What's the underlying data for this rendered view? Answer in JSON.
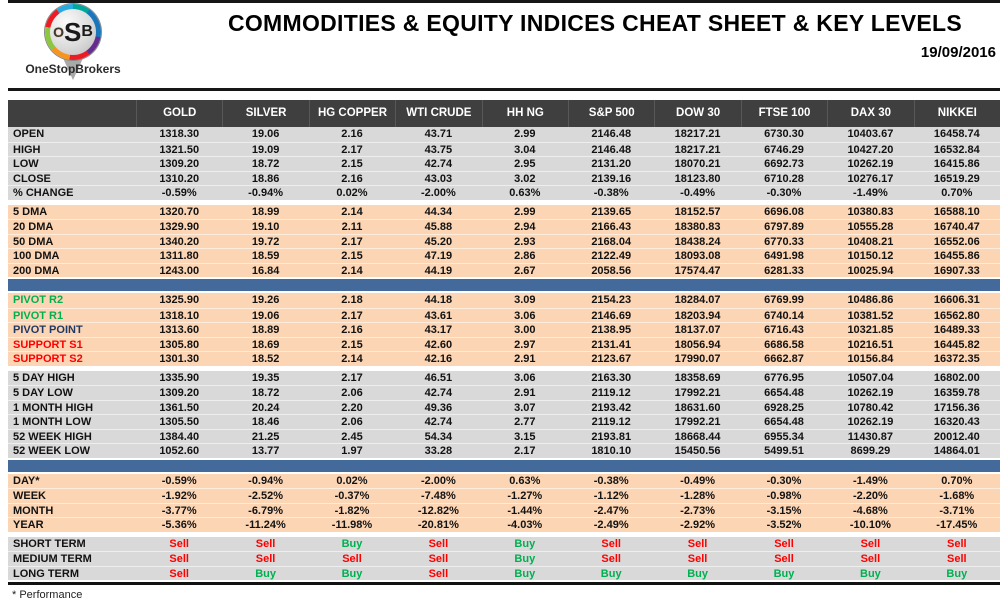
{
  "header": {
    "title": "COMMODITIES & EQUITY INDICES CHEAT SHEET & KEY LEVELS",
    "date": "19/09/2016",
    "logo": {
      "letters": [
        "O",
        "S",
        "B"
      ],
      "name": "OneStopBrokers"
    }
  },
  "colors": {
    "header_dark": "#3f3f3f",
    "gray_row": "#d9d9d9",
    "peach_row": "#fcd5b4",
    "band_blue": "#44699b",
    "buy_green": "#00b050",
    "sell_red": "#fe0000",
    "pivot_navy": "#1f3864"
  },
  "table": {
    "columns": [
      "GOLD",
      "SILVER",
      "HG COPPER",
      "WTI CRUDE",
      "HH NG",
      "S&P 500",
      "DOW 30",
      "FTSE 100",
      "DAX 30",
      "NIKKEI"
    ],
    "sections": [
      {
        "id": "daily",
        "bg": "gray",
        "divider_after": "gap",
        "rows": [
          {
            "label": "OPEN",
            "values": [
              "1318.30",
              "19.06",
              "2.16",
              "43.71",
              "2.99",
              "2146.48",
              "18217.21",
              "6730.30",
              "10403.67",
              "16458.74"
            ]
          },
          {
            "label": "HIGH",
            "values": [
              "1321.50",
              "19.09",
              "2.17",
              "43.75",
              "3.04",
              "2146.48",
              "18217.21",
              "6746.29",
              "10427.20",
              "16532.84"
            ]
          },
          {
            "label": "LOW",
            "values": [
              "1309.20",
              "18.72",
              "2.15",
              "42.74",
              "2.95",
              "2131.20",
              "18070.21",
              "6692.73",
              "10262.19",
              "16415.86"
            ]
          },
          {
            "label": "CLOSE",
            "values": [
              "1310.20",
              "18.86",
              "2.16",
              "43.03",
              "3.02",
              "2139.16",
              "18123.80",
              "6710.28",
              "10276.17",
              "16519.29"
            ]
          },
          {
            "label": "% CHANGE",
            "values": [
              "-0.59%",
              "-0.94%",
              "0.02%",
              "-2.00%",
              "0.63%",
              "-0.38%",
              "-0.49%",
              "-0.30%",
              "-1.49%",
              "0.70%"
            ]
          }
        ]
      },
      {
        "id": "dma",
        "bg": "peach",
        "divider_after": "band",
        "rows": [
          {
            "label": "5 DMA",
            "values": [
              "1320.70",
              "18.99",
              "2.14",
              "44.34",
              "2.99",
              "2139.65",
              "18152.57",
              "6696.08",
              "10380.83",
              "16588.10"
            ]
          },
          {
            "label": "20 DMA",
            "values": [
              "1329.90",
              "19.10",
              "2.11",
              "45.88",
              "2.94",
              "2166.43",
              "18380.83",
              "6797.89",
              "10555.28",
              "16740.47"
            ]
          },
          {
            "label": "50 DMA",
            "values": [
              "1340.20",
              "19.72",
              "2.17",
              "45.20",
              "2.93",
              "2168.04",
              "18438.24",
              "6770.33",
              "10408.21",
              "16552.06"
            ]
          },
          {
            "label": "100 DMA",
            "values": [
              "1311.80",
              "18.59",
              "2.15",
              "47.19",
              "2.86",
              "2122.49",
              "18093.08",
              "6491.98",
              "10150.12",
              "16455.86"
            ]
          },
          {
            "label": "200 DMA",
            "values": [
              "1243.00",
              "16.84",
              "2.14",
              "44.19",
              "2.67",
              "2058.56",
              "17574.47",
              "6281.33",
              "10025.94",
              "16907.33"
            ]
          }
        ]
      },
      {
        "id": "pivots",
        "bg": "peach",
        "divider_after": "gap",
        "rows": [
          {
            "label": "PIVOT R2",
            "label_color": "green",
            "values": [
              "1325.90",
              "19.26",
              "2.18",
              "44.18",
              "3.09",
              "2154.23",
              "18284.07",
              "6769.99",
              "10486.86",
              "16606.31"
            ]
          },
          {
            "label": "PIVOT R1",
            "label_color": "green",
            "values": [
              "1318.10",
              "19.06",
              "2.17",
              "43.61",
              "3.06",
              "2146.69",
              "18203.94",
              "6740.14",
              "10381.52",
              "16562.80"
            ]
          },
          {
            "label": "PIVOT POINT",
            "label_color": "navy",
            "values": [
              "1313.60",
              "18.89",
              "2.16",
              "43.17",
              "3.00",
              "2138.95",
              "18137.07",
              "6716.43",
              "10321.85",
              "16489.33"
            ]
          },
          {
            "label": "SUPPORT S1",
            "label_color": "red",
            "values": [
              "1305.80",
              "18.69",
              "2.15",
              "42.60",
              "2.97",
              "2131.41",
              "18056.94",
              "6686.58",
              "10216.51",
              "16445.82"
            ]
          },
          {
            "label": "SUPPORT S2",
            "label_color": "red",
            "values": [
              "1301.30",
              "18.52",
              "2.14",
              "42.16",
              "2.91",
              "2123.67",
              "17990.07",
              "6662.87",
              "10156.84",
              "16372.35"
            ]
          }
        ]
      },
      {
        "id": "ranges",
        "bg": "gray",
        "divider_after": "band",
        "rows": [
          {
            "label": "5 DAY HIGH",
            "values": [
              "1335.90",
              "19.35",
              "2.17",
              "46.51",
              "3.06",
              "2163.30",
              "18358.69",
              "6776.95",
              "10507.04",
              "16802.00"
            ]
          },
          {
            "label": "5 DAY LOW",
            "values": [
              "1309.20",
              "18.72",
              "2.06",
              "42.74",
              "2.91",
              "2119.12",
              "17992.21",
              "6654.48",
              "10262.19",
              "16359.78"
            ]
          },
          {
            "label": "1 MONTH HIGH",
            "values": [
              "1361.50",
              "20.24",
              "2.20",
              "49.36",
              "3.07",
              "2193.42",
              "18631.60",
              "6928.25",
              "10780.42",
              "17156.36"
            ]
          },
          {
            "label": "1 MONTH LOW",
            "values": [
              "1305.50",
              "18.46",
              "2.06",
              "42.74",
              "2.77",
              "2119.12",
              "17992.21",
              "6654.48",
              "10262.19",
              "16320.43"
            ]
          },
          {
            "label": "52 WEEK HIGH",
            "values": [
              "1384.40",
              "21.25",
              "2.45",
              "54.34",
              "3.15",
              "2193.81",
              "18668.44",
              "6955.34",
              "11430.87",
              "20012.40"
            ]
          },
          {
            "label": "52 WEEK LOW",
            "values": [
              "1052.60",
              "13.77",
              "1.97",
              "33.28",
              "2.17",
              "1810.10",
              "15450.56",
              "5499.51",
              "8699.29",
              "14864.01"
            ]
          }
        ]
      },
      {
        "id": "performance",
        "bg": "peach",
        "divider_after": "gap",
        "rows": [
          {
            "label": "DAY*",
            "values": [
              "-0.59%",
              "-0.94%",
              "0.02%",
              "-2.00%",
              "0.63%",
              "-0.38%",
              "-0.49%",
              "-0.30%",
              "-1.49%",
              "0.70%"
            ]
          },
          {
            "label": "WEEK",
            "values": [
              "-1.92%",
              "-2.52%",
              "-0.37%",
              "-7.48%",
              "-1.27%",
              "-1.12%",
              "-1.28%",
              "-0.98%",
              "-2.20%",
              "-1.68%"
            ]
          },
          {
            "label": "MONTH",
            "values": [
              "-3.77%",
              "-6.79%",
              "-1.82%",
              "-12.82%",
              "-1.44%",
              "-2.47%",
              "-2.73%",
              "-3.15%",
              "-4.68%",
              "-3.71%"
            ]
          },
          {
            "label": "YEAR",
            "values": [
              "-5.36%",
              "-11.24%",
              "-11.98%",
              "-20.81%",
              "-4.03%",
              "-2.49%",
              "-2.92%",
              "-3.52%",
              "-10.10%",
              "-17.45%"
            ]
          }
        ]
      },
      {
        "id": "signals",
        "bg": "gray",
        "divider_after": "none",
        "signal_colors": true,
        "rows": [
          {
            "label": "SHORT TERM",
            "values": [
              "Sell",
              "Sell",
              "Buy",
              "Sell",
              "Buy",
              "Sell",
              "Sell",
              "Sell",
              "Sell",
              "Sell"
            ]
          },
          {
            "label": "MEDIUM TERM",
            "values": [
              "Sell",
              "Sell",
              "Sell",
              "Sell",
              "Buy",
              "Sell",
              "Sell",
              "Sell",
              "Sell",
              "Sell"
            ]
          },
          {
            "label": "LONG TERM",
            "values": [
              "Sell",
              "Buy",
              "Buy",
              "Sell",
              "Buy",
              "Buy",
              "Buy",
              "Buy",
              "Buy",
              "Buy"
            ]
          }
        ]
      }
    ]
  },
  "footer": {
    "note": "* Performance"
  }
}
